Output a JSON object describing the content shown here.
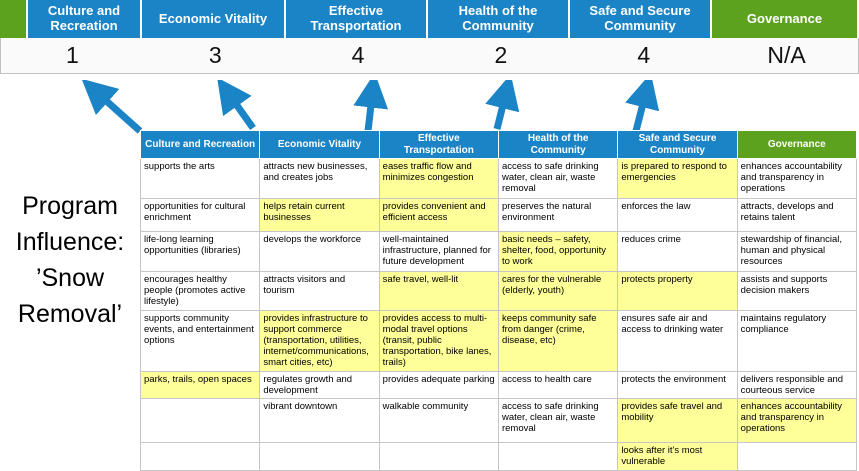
{
  "colors": {
    "blue": "#1b84c6",
    "green": "#5da21f",
    "yellow": "#ffff99",
    "arrow": "#1b84c6"
  },
  "top": {
    "headers": [
      {
        "label": "",
        "color": "green"
      },
      {
        "label": "Culture and Recreation",
        "color": "blue"
      },
      {
        "label": "Economic Vitality",
        "color": "blue"
      },
      {
        "label": "Effective Transportation",
        "color": "blue"
      },
      {
        "label": "Health of the Community",
        "color": "blue"
      },
      {
        "label": "Safe and Secure Community",
        "color": "blue"
      },
      {
        "label": "Governance",
        "color": "green"
      }
    ],
    "scores": [
      "1",
      "3",
      "4",
      "2",
      "4",
      "N/A"
    ]
  },
  "program_label": {
    "lines": [
      "Program",
      "Influence:",
      "’Snow",
      "Removal’"
    ]
  },
  "table": {
    "headers": [
      {
        "label": "Culture and Recreation",
        "color": "blue"
      },
      {
        "label": "Economic Vitality",
        "color": "blue"
      },
      {
        "label": "Effective Transportation",
        "color": "blue"
      },
      {
        "label": "Health of the Community",
        "color": "blue"
      },
      {
        "label": "Safe and Secure Community",
        "color": "blue"
      },
      {
        "label": "Governance",
        "color": "green"
      }
    ],
    "rows": [
      [
        {
          "t": "supports the arts",
          "h": false
        },
        {
          "t": "attracts new businesses, and creates jobs",
          "h": false
        },
        {
          "t": "eases traffic flow and minimizes congestion",
          "h": true
        },
        {
          "t": "access to safe drinking water, clean air, waste removal",
          "h": false
        },
        {
          "t": "is prepared to respond to emergencies",
          "h": true
        },
        {
          "t": "enhances accountability and transparency in operations",
          "h": false
        }
      ],
      [
        {
          "t": "opportunities for cultural enrichment",
          "h": false
        },
        {
          "t": "helps retain current businesses",
          "h": true
        },
        {
          "t": "provides convenient and efficient access",
          "h": true
        },
        {
          "t": "preserves the natural environment",
          "h": false
        },
        {
          "t": "enforces the law",
          "h": false
        },
        {
          "t": "attracts, develops and retains talent",
          "h": false
        }
      ],
      [
        {
          "t": "life-long learning opportunities (libraries)",
          "h": false
        },
        {
          "t": "develops the workforce",
          "h": false
        },
        {
          "t": "well-maintained infrastructure, planned for future development",
          "h": false
        },
        {
          "t": "basic needs – safety, shelter, food, opportunity to work",
          "h": true
        },
        {
          "t": "reduces crime",
          "h": false
        },
        {
          "t": "stewardship of financial, human and physical resources",
          "h": false
        }
      ],
      [
        {
          "t": "encourages healthy people (promotes active lifestyle)",
          "h": false
        },
        {
          "t": "attracts visitors and tourism",
          "h": false
        },
        {
          "t": "safe travel, well-lit",
          "h": true
        },
        {
          "t": "cares for the vulnerable (elderly, youth)",
          "h": true
        },
        {
          "t": "protects property",
          "h": true
        },
        {
          "t": "assists and supports decision makers",
          "h": false
        }
      ],
      [
        {
          "t": "supports community events, and entertainment options",
          "h": false
        },
        {
          "t": "provides infrastructure to support commerce (transportation, utilities, internet/communications, smart cities, etc)",
          "h": true
        },
        {
          "t": "provides access to multi-modal travel options (transit, public transportation, bike lanes, trails)",
          "h": true
        },
        {
          "t": "keeps community safe from danger (crime, disease, etc)",
          "h": true
        },
        {
          "t": "ensures safe air and access to drinking water",
          "h": false
        },
        {
          "t": "maintains regulatory compliance",
          "h": false
        }
      ],
      [
        {
          "t": "parks, trails, open spaces",
          "h": true
        },
        {
          "t": "regulates growth and development",
          "h": false
        },
        {
          "t": "provides adequate parking",
          "h": false
        },
        {
          "t": "access to health care",
          "h": false
        },
        {
          "t": "protects the environment",
          "h": false
        },
        {
          "t": "delivers responsible and courteous service",
          "h": false
        }
      ],
      [
        {
          "t": "",
          "h": false
        },
        {
          "t": "vibrant downtown",
          "h": false
        },
        {
          "t": "walkable community",
          "h": false
        },
        {
          "t": "access to safe drinking water, clean air, waste removal",
          "h": false
        },
        {
          "t": "provides safe travel and mobility",
          "h": true
        },
        {
          "t": "enhances accountability and transparency in operations",
          "h": true
        }
      ],
      [
        {
          "t": "",
          "h": false
        },
        {
          "t": "",
          "h": false
        },
        {
          "t": "",
          "h": false
        },
        {
          "t": "",
          "h": false
        },
        {
          "t": "looks after it's most vulnerable",
          "h": true
        },
        {
          "t": "",
          "h": false
        }
      ]
    ]
  }
}
